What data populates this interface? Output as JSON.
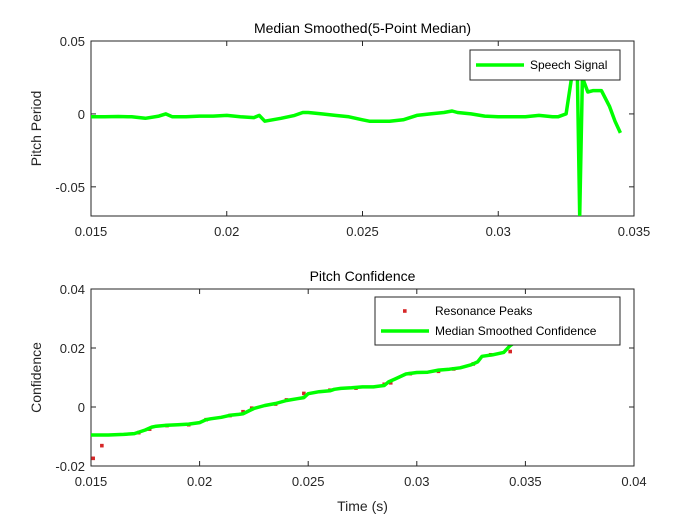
{
  "chart_data": [
    {
      "type": "line",
      "title": "Median Smoothed(5-Point Median)",
      "xlabel": "",
      "ylabel": "Pitch Period",
      "xlim": [
        0.015,
        0.035
      ],
      "ylim": [
        -0.07,
        0.05
      ],
      "xticks": [
        "0.015",
        "0.02",
        "0.025",
        "0.03",
        "0.035"
      ],
      "yticks": [
        "0.05",
        "0",
        "-0.05"
      ],
      "legend_position": "top-right",
      "grid": false,
      "series": [
        {
          "name": "Speech Signal",
          "color": "#00ff00",
          "style": "line",
          "x": [
            0.015,
            0.0155,
            0.016,
            0.0165,
            0.017,
            0.0175,
            0.01775,
            0.018,
            0.0185,
            0.019,
            0.0195,
            0.02,
            0.0205,
            0.021,
            0.0212,
            0.0214,
            0.022,
            0.0225,
            0.0228,
            0.023,
            0.0235,
            0.024,
            0.0245,
            0.025,
            0.02525,
            0.0255,
            0.026,
            0.0265,
            0.027,
            0.0275,
            0.028,
            0.0283,
            0.0285,
            0.029,
            0.0295,
            0.03,
            0.0305,
            0.031,
            0.0315,
            0.032,
            0.0322,
            0.0325,
            0.0327,
            0.0329,
            0.033,
            0.0331,
            0.0333,
            0.0335,
            0.0338,
            0.0341,
            0.0343,
            0.0345
          ],
          "y": [
            -0.002,
            -0.002,
            -0.0018,
            -0.002,
            -0.003,
            -0.0015,
            0.0,
            -0.002,
            -0.002,
            -0.0015,
            -0.0015,
            -0.001,
            -0.002,
            -0.0025,
            -0.001,
            -0.005,
            -0.003,
            -0.001,
            0.001,
            0.001,
            0.0,
            -0.001,
            -0.002,
            -0.004,
            -0.005,
            -0.005,
            -0.005,
            -0.004,
            -0.001,
            0.0,
            0.001,
            0.002,
            0.001,
            0.0,
            -0.0015,
            -0.002,
            -0.002,
            -0.002,
            -0.001,
            -0.002,
            -0.002,
            0.0,
            0.025,
            0.042,
            -0.07,
            0.025,
            0.015,
            0.016,
            0.016,
            0.005,
            -0.005,
            -0.013
          ]
        }
      ]
    },
    {
      "type": "line",
      "title": "Pitch Confidence",
      "xlabel": "Time (s)",
      "ylabel": "Confidence",
      "xlim": [
        0.015,
        0.04
      ],
      "ylim": [
        -0.02,
        0.04
      ],
      "xticks": [
        "0.015",
        "0.02",
        "0.025",
        "0.03",
        "0.035",
        "0.04"
      ],
      "yticks": [
        "0.04",
        "0.02",
        "0",
        "-0.02"
      ],
      "legend_position": "top-right",
      "grid": false,
      "series": [
        {
          "name": "Resonance Peaks",
          "color": "#d62728",
          "style": "markers",
          "x": [
            0.0151,
            0.0155,
            0.0172,
            0.0177,
            0.0185,
            0.0195,
            0.0203,
            0.0214,
            0.022,
            0.0224,
            0.0235,
            0.024,
            0.0248,
            0.026,
            0.0272,
            0.0285,
            0.0288,
            0.0297,
            0.031,
            0.0317,
            0.0326,
            0.0334,
            0.0343,
            0.0347
          ],
          "y": [
            -0.0174,
            -0.0131,
            -0.0087,
            -0.0075,
            -0.0063,
            -0.006,
            -0.0043,
            -0.0029,
            -0.0016,
            -0.0004,
            0.001,
            0.0024,
            0.0046,
            0.0057,
            0.0064,
            0.0077,
            0.0082,
            0.0113,
            0.0121,
            0.0129,
            0.0146,
            0.0177,
            0.0188,
            0.0223
          ]
        },
        {
          "name": "Median Smoothed Confidence",
          "color": "#00ff00",
          "style": "line",
          "x": [
            0.015,
            0.0158,
            0.0165,
            0.017,
            0.0175,
            0.0178,
            0.018,
            0.0185,
            0.019,
            0.0195,
            0.02,
            0.0203,
            0.0205,
            0.021,
            0.0214,
            0.0218,
            0.022,
            0.0223,
            0.0225,
            0.023,
            0.0235,
            0.024,
            0.0245,
            0.0248,
            0.025,
            0.0255,
            0.026,
            0.0262,
            0.0265,
            0.027,
            0.0275,
            0.028,
            0.0285,
            0.0287,
            0.029,
            0.0295,
            0.03,
            0.0305,
            0.031,
            0.0315,
            0.032,
            0.0325,
            0.0328,
            0.033,
            0.0335,
            0.034,
            0.0343,
            0.0345
          ],
          "y": [
            -0.0095,
            -0.0095,
            -0.0093,
            -0.009,
            -0.0078,
            -0.0068,
            -0.0065,
            -0.0062,
            -0.006,
            -0.0058,
            -0.0053,
            -0.0043,
            -0.004,
            -0.0035,
            -0.0028,
            -0.0025,
            -0.0023,
            -0.0012,
            -0.0005,
            0.0005,
            0.0012,
            0.0022,
            0.0028,
            0.0032,
            0.0045,
            0.0052,
            0.0055,
            0.006,
            0.0063,
            0.0065,
            0.0068,
            0.0068,
            0.0073,
            0.0085,
            0.0095,
            0.0112,
            0.0117,
            0.0118,
            0.0125,
            0.0128,
            0.0133,
            0.0143,
            0.0153,
            0.0172,
            0.0177,
            0.0185,
            0.0208,
            0.0218
          ]
        }
      ]
    }
  ]
}
